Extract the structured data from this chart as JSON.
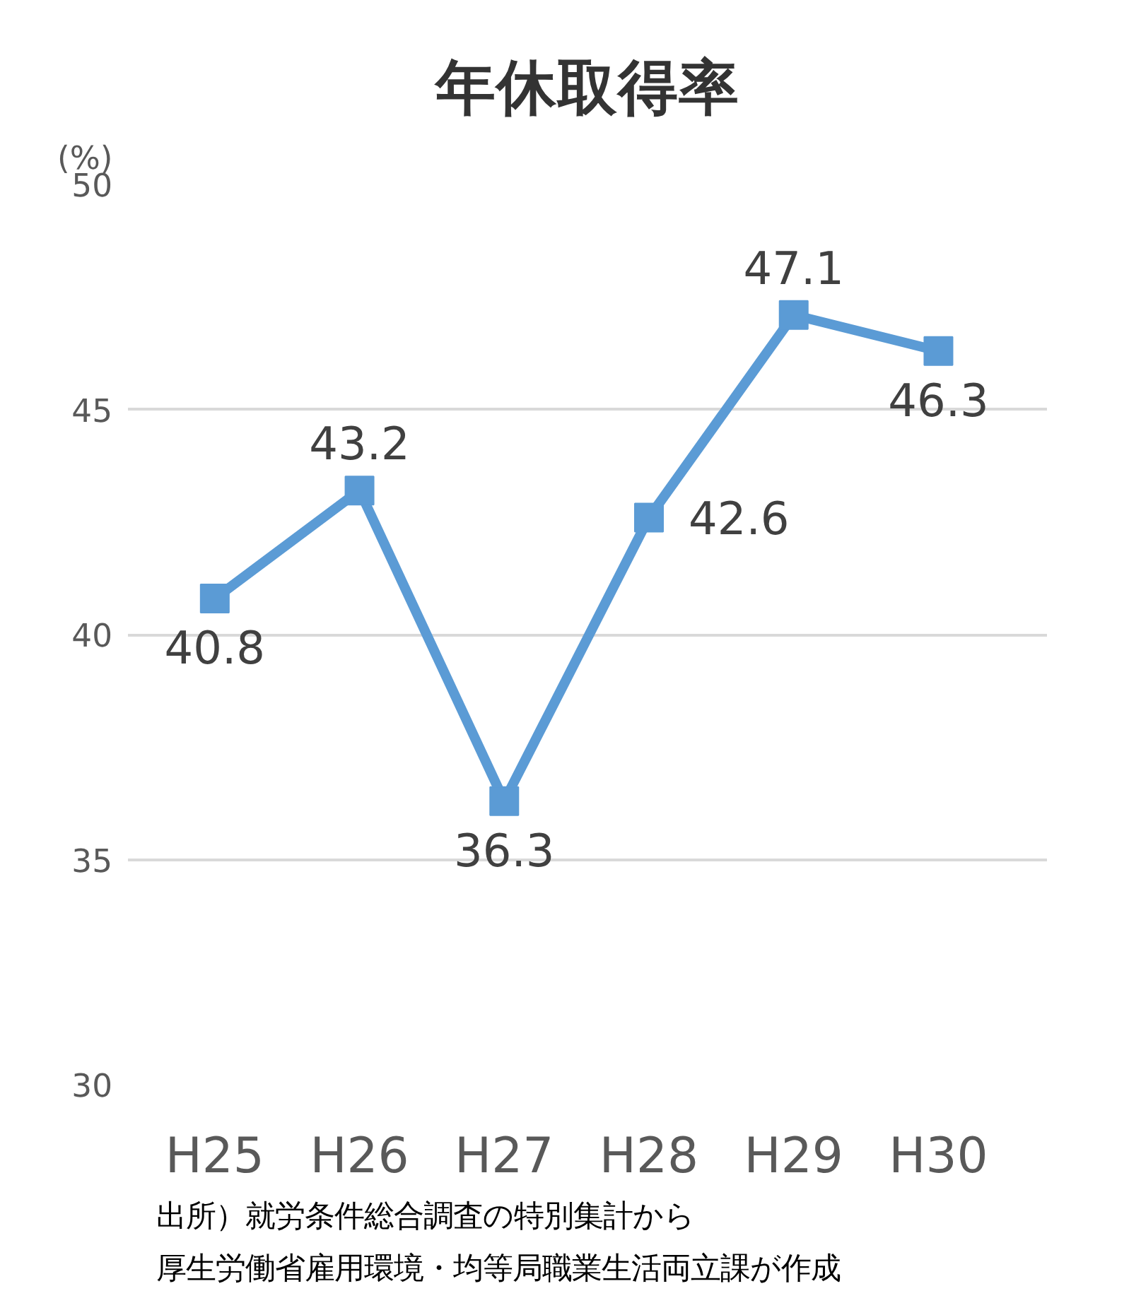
{
  "chart_data": {
    "type": "line",
    "title": "年休取得率",
    "ylabel": "(%)",
    "categories": [
      "H25",
      "H26",
      "H27",
      "H28",
      "H29",
      "H30"
    ],
    "series": [
      {
        "color": "#5b9bd5",
        "values": [
          40.8,
          43.2,
          36.3,
          42.6,
          47.1,
          46.3
        ]
      }
    ],
    "ylim": [
      30,
      50
    ],
    "yticks": [
      30,
      35,
      40,
      45,
      50
    ],
    "grid": "y",
    "marker": "square",
    "line_style": "solid",
    "data_labels": true,
    "annotations": [
      "出所）就労条件総合調査の特別集計から",
      "厚生労働省雇用環境・均等局職業生活両立課が作成"
    ]
  }
}
